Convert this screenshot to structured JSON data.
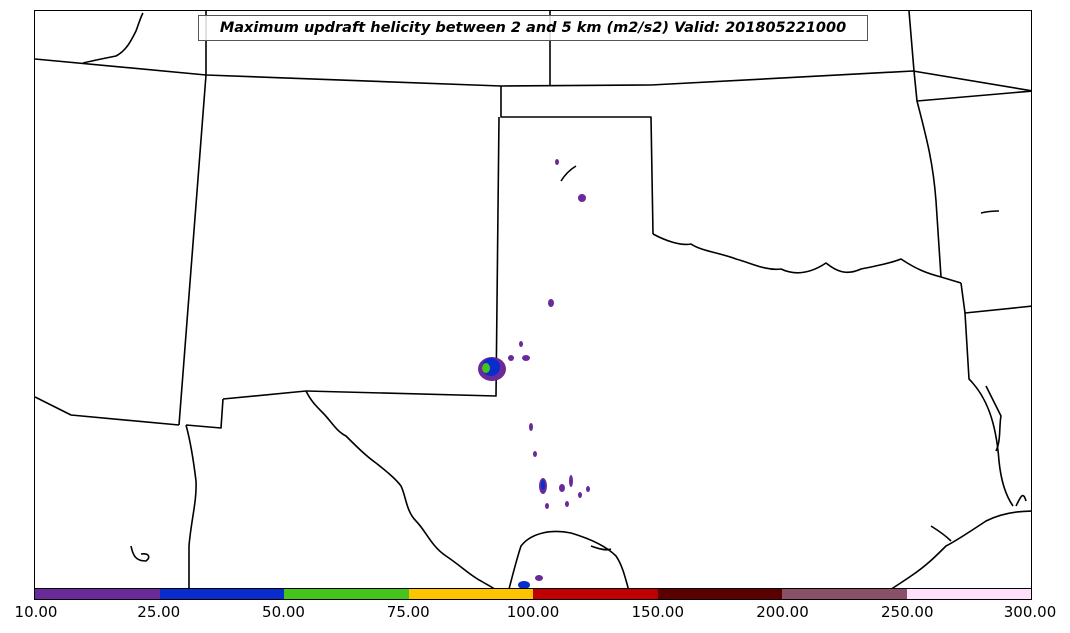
{
  "title": "Maximum updraft helicity between 2 and 5 km (m2/s2) Valid: 201805221000",
  "colorbar": {
    "ticks": [
      "10.00",
      "25.00",
      "50.00",
      "75.00",
      "100.00",
      "150.00",
      "200.00",
      "250.00",
      "300.00"
    ],
    "colors": [
      "#6a2a9a",
      "#0a2ccc",
      "#44c41c",
      "#ffc400",
      "#c00000",
      "#5a0000",
      "#8a5068",
      "#ffe0fa"
    ]
  },
  "map": {
    "border_color": "#000000",
    "background": "#ffffff"
  }
}
